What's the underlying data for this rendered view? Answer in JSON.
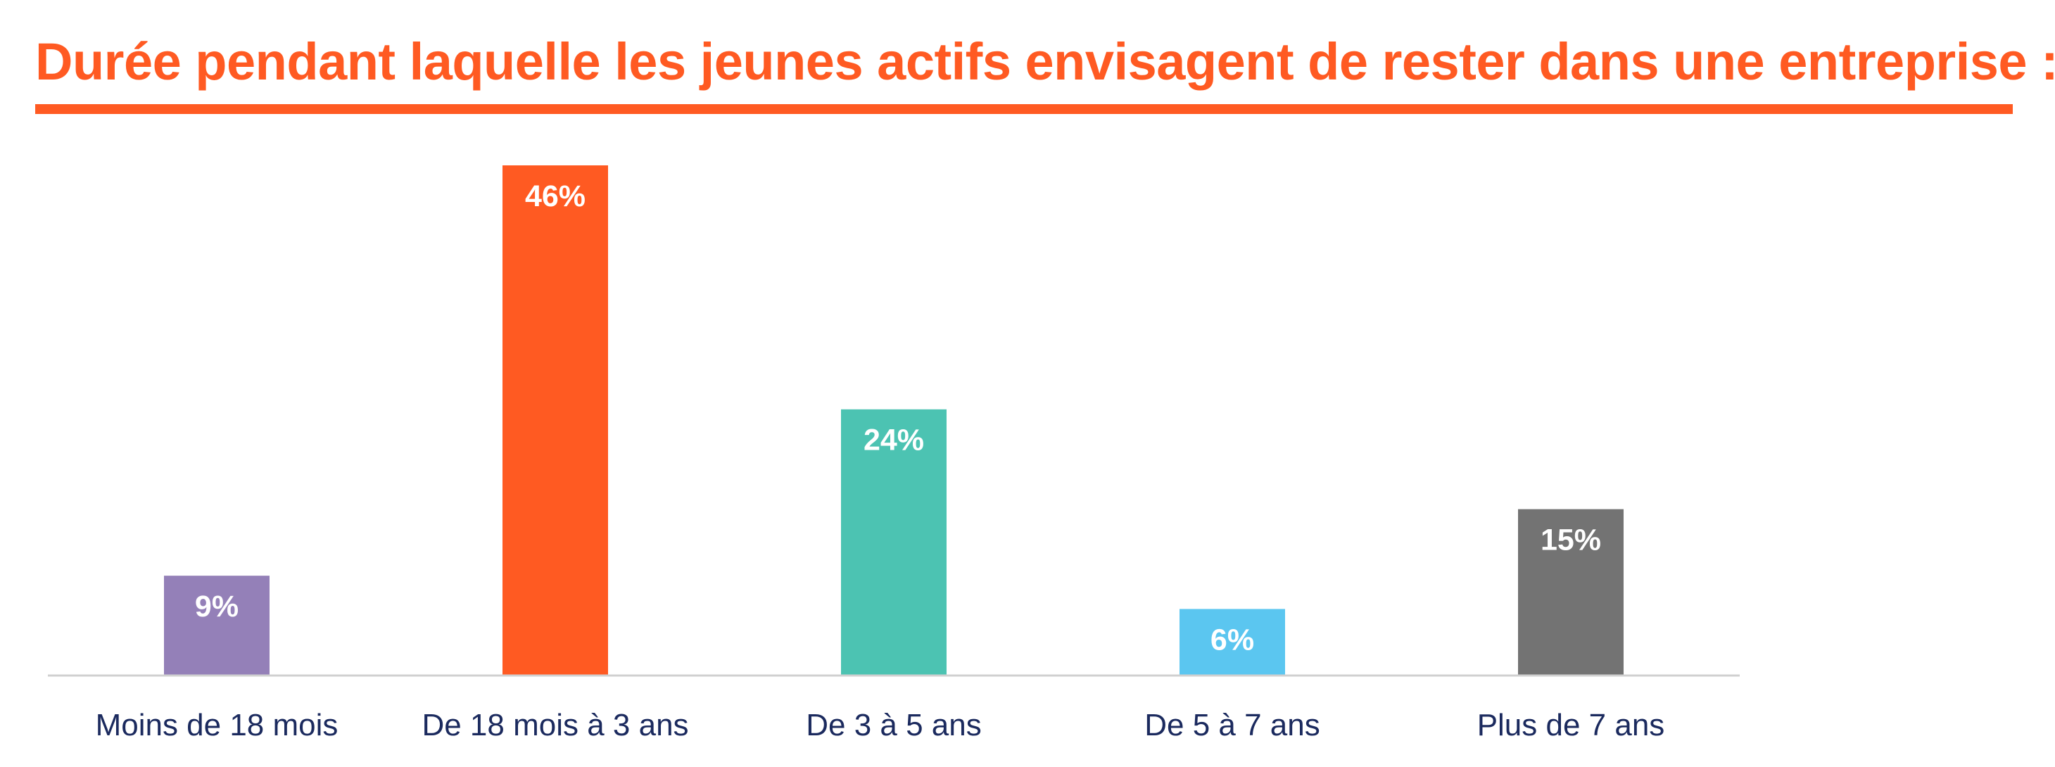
{
  "chart_data": {
    "type": "bar",
    "title": "Durée pendant laquelle les jeunes actifs envisagent de rester dans une entreprise :",
    "categories": [
      "Moins de 18 mois",
      "De 18 mois à 3 ans",
      "De 3 à 5 ans",
      "De 5 à 7 ans",
      "Plus de 7 ans"
    ],
    "values": [
      9,
      46,
      24,
      6,
      15
    ],
    "value_labels": [
      "9%",
      "46%",
      "24%",
      "6%",
      "15%"
    ],
    "colors": [
      "#9480b8",
      "#ff5a22",
      "#4cc3b2",
      "#5bc6f0",
      "#737373"
    ],
    "xlabel": "",
    "ylabel": "",
    "ylim": [
      0,
      46
    ],
    "grid": false,
    "legend": "none",
    "title_color": "#ff5a22",
    "label_color": "#1b2a5e"
  }
}
